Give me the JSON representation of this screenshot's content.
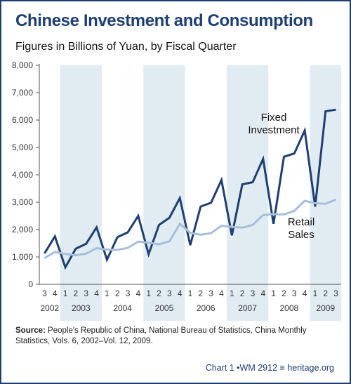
{
  "header": {
    "title": "Chinese Investment and Consumption",
    "subtitle": "Figures in Billions of Yuan, by Fiscal Quarter"
  },
  "footer": {
    "source_label": "Source:",
    "source_text": "People's Republic of China, National Bureau of Statistics, China Monthly Statistics, Vols. 6, 2002–Vol. 12, 2009.",
    "credit": "Chart 1 •WM 2912 ≡ heritage.org"
  },
  "chart_data": {
    "type": "line",
    "quarter_labels": [
      "3",
      "4",
      "1",
      "2",
      "3",
      "4",
      "1",
      "2",
      "3",
      "4",
      "1",
      "2",
      "3",
      "4",
      "1",
      "2",
      "3",
      "4",
      "1",
      "2",
      "3",
      "4",
      "1",
      "2",
      "3",
      "4",
      "1",
      "2",
      "3"
    ],
    "years": [
      {
        "label": "2002",
        "start": 0,
        "end": 1,
        "shaded": false
      },
      {
        "label": "2003",
        "start": 2,
        "end": 5,
        "shaded": true
      },
      {
        "label": "2004",
        "start": 6,
        "end": 9,
        "shaded": false
      },
      {
        "label": "2005",
        "start": 10,
        "end": 13,
        "shaded": true
      },
      {
        "label": "2006",
        "start": 14,
        "end": 17,
        "shaded": false
      },
      {
        "label": "2007",
        "start": 18,
        "end": 21,
        "shaded": true
      },
      {
        "label": "2008",
        "start": 22,
        "end": 25,
        "shaded": false
      },
      {
        "label": "2009",
        "start": 26,
        "end": 28,
        "shaded": true
      }
    ],
    "yticks": [
      "0",
      "1,000",
      "2,000",
      "3,000",
      "4,000",
      "5,000",
      "6,000",
      "7,000",
      "8,000"
    ],
    "ylim": [
      0,
      8000
    ],
    "series": [
      {
        "name": "Fixed Investment",
        "label_lines": [
          "Fixed",
          "Investment"
        ],
        "color": "#1d3f73",
        "values": [
          1130,
          1750,
          620,
          1300,
          1480,
          2080,
          900,
          1720,
          1900,
          2500,
          1100,
          2170,
          2430,
          3150,
          1430,
          2840,
          2980,
          3810,
          1790,
          3650,
          3730,
          4580,
          2210,
          4660,
          4780,
          5620,
          2840,
          6320,
          6380
        ]
      },
      {
        "name": "Retail Sales",
        "label_lines": [
          "Retail",
          "Sales"
        ],
        "color": "#a6bede",
        "values": [
          960,
          1180,
          1110,
          1060,
          1120,
          1320,
          1270,
          1260,
          1330,
          1560,
          1520,
          1460,
          1570,
          2210,
          1880,
          1810,
          1870,
          2140,
          2100,
          2070,
          2170,
          2530,
          2560,
          2550,
          2680,
          3050,
          2960,
          2940,
          3100
        ]
      }
    ],
    "grid": false,
    "shading_color": "#e1ecf2"
  }
}
